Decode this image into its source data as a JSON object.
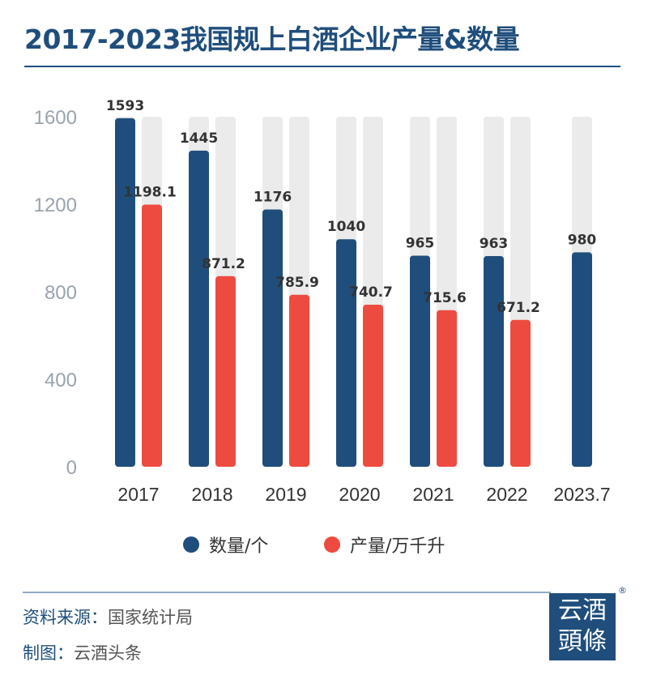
{
  "title": "2017-2023我国规上白酒企业产量&数量",
  "chart_data": {
    "type": "bar",
    "title": "2017-2023我国规上白酒企业产量&数量",
    "categories": [
      "2017",
      "2018",
      "2019",
      "2020",
      "2021",
      "2022",
      "2023.7"
    ],
    "series": [
      {
        "name": "数量/个",
        "color": "#1f4e7c",
        "values": [
          1593,
          1445,
          1176,
          1040,
          965,
          963,
          980
        ],
        "labels": [
          "1593",
          "1445",
          "1176",
          "1040",
          "965",
          "963",
          "980"
        ]
      },
      {
        "name": "产量/万千升",
        "color": "#ee4b40",
        "values": [
          1198.1,
          871.2,
          785.9,
          740.7,
          715.6,
          671.2,
          null
        ],
        "labels": [
          "1198.1",
          "871.2",
          "785.9",
          "740.7",
          "715.6",
          "671.2",
          null
        ]
      }
    ],
    "ylim": [
      0,
      1600
    ],
    "yticks": [
      "0",
      "400",
      "800",
      "1200",
      "1600"
    ],
    "legend": "bottom",
    "grid": false
  },
  "footer": {
    "source_label": "资料来源：",
    "source_value": "国家统计局",
    "maker_label": "制图：",
    "maker_value": "云酒头条"
  },
  "logo": {
    "line1": "云酒",
    "line2": "頭條",
    "mark": "®"
  }
}
